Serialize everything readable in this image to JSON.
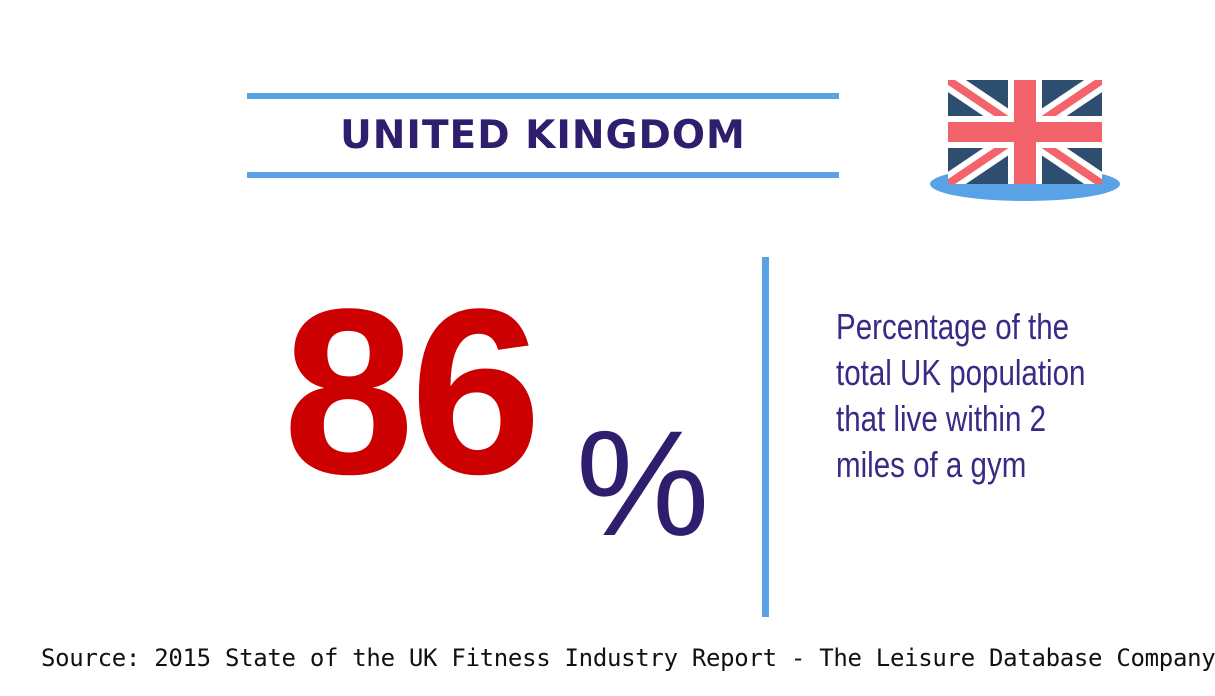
{
  "header": {
    "title": "UNITED KINGDOM",
    "flag_icon": "union-jack-flag-icon"
  },
  "stat": {
    "value": "86",
    "unit": "%",
    "description_lines": [
      "Percentage of the",
      "total UK population",
      "that live within 2",
      "miles of a gym"
    ]
  },
  "footer": {
    "source": "Source: 2015 State of the UK Fitness Industry Report - The Leisure Database Company"
  },
  "colors": {
    "accent_blue": "#5aa2e6",
    "title_navy": "#2f1d6e",
    "stat_red": "#cc0000",
    "description_purple": "#3a2a86",
    "flag_blue": "#2d4e6e",
    "flag_red": "#f2636b",
    "flag_white": "#ffffff"
  }
}
